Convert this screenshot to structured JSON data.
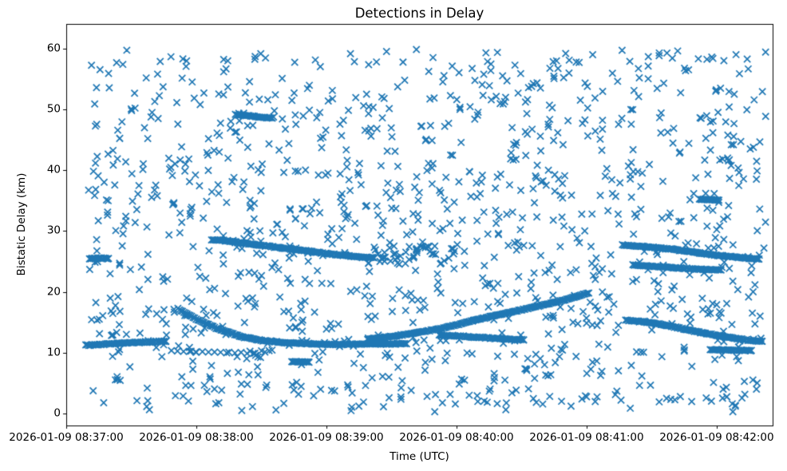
{
  "figure": {
    "background": "#ffffff"
  },
  "chart_data": {
    "type": "scatter",
    "title": "Detections in Delay",
    "xlabel": "Time (UTC)",
    "ylabel": "Bistatic Delay (km)",
    "marker": "x",
    "marker_color": "#1f77b4",
    "axis_color": "#000000",
    "grid": false,
    "legend": null,
    "x_axis": {
      "kind": "time_utc",
      "tick_labels": [
        "2026-01-09 08:37:00",
        "2026-01-09 08:38:00",
        "2026-01-09 08:39:00",
        "2026-01-09 08:40:00",
        "2026-01-09 08:41:00",
        "2026-01-09 08:42:00"
      ],
      "tick_seconds": [
        0,
        60,
        120,
        180,
        240,
        300
      ],
      "lim_seconds": [
        0,
        325.8
      ]
    },
    "y_axis": {
      "ticks": [
        0,
        10,
        20,
        30,
        40,
        50,
        60
      ],
      "lim": [
        -2.0,
        64.1
      ]
    },
    "tracks": [
      {
        "name": "flat-11.5-left",
        "points": [
          [
            9,
            11.2
          ],
          [
            20,
            11.45
          ],
          [
            33,
            11.7
          ],
          [
            46,
            11.85
          ]
        ],
        "step_s": 0.7,
        "jitter_km": 0.12
      },
      {
        "name": "dotted-10-left",
        "points": [
          [
            48.5,
            10.3
          ],
          [
            60,
            10.15
          ],
          [
            75,
            10.0
          ],
          [
            87,
            9.9
          ]
        ],
        "step_s": 2.8,
        "jitter_km": 0.12
      },
      {
        "name": "descending-17-to-11.4",
        "points": [
          [
            51.5,
            17.2
          ],
          [
            60,
            15.5
          ],
          [
            70,
            13.9
          ],
          [
            80,
            12.7
          ],
          [
            90,
            12.0
          ],
          [
            102,
            11.6
          ],
          [
            118,
            11.35
          ],
          [
            140,
            11.4
          ],
          [
            157,
            11.45
          ]
        ],
        "step_s": 0.7,
        "jitter_km": 0.1
      },
      {
        "name": "ascending-12-to-20",
        "points": [
          [
            139,
            12.2
          ],
          [
            155,
            12.9
          ],
          [
            172,
            13.9
          ],
          [
            194,
            15.8
          ],
          [
            213,
            17.3
          ],
          [
            228,
            18.5
          ],
          [
            241,
            19.8
          ]
        ],
        "step_s": 0.7,
        "jitter_km": 0.1
      },
      {
        "name": "flat-12.5-mid",
        "points": [
          [
            172,
            12.9
          ],
          [
            192,
            12.45
          ],
          [
            211,
            12.1
          ]
        ],
        "step_s": 0.7,
        "jitter_km": 0.12
      },
      {
        "name": "descending-28.5-to-25.6",
        "points": [
          [
            67,
            28.6
          ],
          [
            74,
            28.4
          ],
          [
            82,
            28.0
          ],
          [
            100,
            27.2
          ],
          [
            120,
            26.3
          ],
          [
            133,
            25.8
          ],
          [
            142,
            25.6
          ]
        ],
        "step_s": 0.7,
        "jitter_km": 0.1
      },
      {
        "name": "segment-49",
        "points": [
          [
            78,
            49.2
          ],
          [
            86,
            48.9
          ],
          [
            95,
            48.6
          ]
        ],
        "step_s": 0.7,
        "jitter_km": 0.1
      },
      {
        "name": "blob-25.5-left",
        "points": [
          [
            10.7,
            25.45
          ],
          [
            15,
            25.55
          ],
          [
            19.5,
            25.5
          ]
        ],
        "step_s": 0.6,
        "jitter_km": 0.1
      },
      {
        "name": "descending-27.7-to-25.4-right",
        "points": [
          [
            256.5,
            27.7
          ],
          [
            268,
            27.4
          ],
          [
            280,
            27.0
          ],
          [
            292,
            26.4
          ],
          [
            303,
            25.9
          ],
          [
            312,
            25.6
          ],
          [
            319.5,
            25.4
          ]
        ],
        "step_s": 0.7,
        "jitter_km": 0.1
      },
      {
        "name": "descending-24.4-to-23.6-right",
        "points": [
          [
            262,
            24.4
          ],
          [
            275,
            24.1
          ],
          [
            288,
            23.8
          ],
          [
            297,
            23.65
          ],
          [
            302,
            23.6
          ]
        ],
        "step_s": 0.7,
        "jitter_km": 0.1
      },
      {
        "name": "segment-35",
        "points": [
          [
            292,
            35.25
          ],
          [
            301,
            35.1
          ]
        ],
        "step_s": 0.6,
        "jitter_km": 0.08
      },
      {
        "name": "descending-15.3-to-11.9-right",
        "points": [
          [
            258,
            15.35
          ],
          [
            270,
            14.9
          ],
          [
            282,
            14.1
          ],
          [
            294,
            13.2
          ],
          [
            306,
            12.5
          ],
          [
            315,
            12.0
          ],
          [
            321,
            11.85
          ]
        ],
        "step_s": 0.7,
        "jitter_km": 0.1
      },
      {
        "name": "flat-10.4-right",
        "points": [
          [
            297,
            10.45
          ],
          [
            308,
            10.4
          ],
          [
            316,
            10.35
          ]
        ],
        "step_s": 0.7,
        "jitter_km": 0.08
      },
      {
        "name": "blob-8.5",
        "points": [
          [
            104,
            8.55
          ],
          [
            112,
            8.4
          ]
        ],
        "step_s": 0.6,
        "jitter_km": 0.1
      }
    ],
    "clusters": [
      {
        "name": "cloud-25-27-mid",
        "t_range": [
          139,
          180
        ],
        "km_range": [
          24.6,
          27.6
        ],
        "count": 48,
        "seed": 7
      }
    ],
    "clutter": {
      "count": 1200,
      "seed": 20260109,
      "t_range": [
        10,
        323
      ],
      "km_range": [
        0.2,
        59.9
      ]
    }
  }
}
